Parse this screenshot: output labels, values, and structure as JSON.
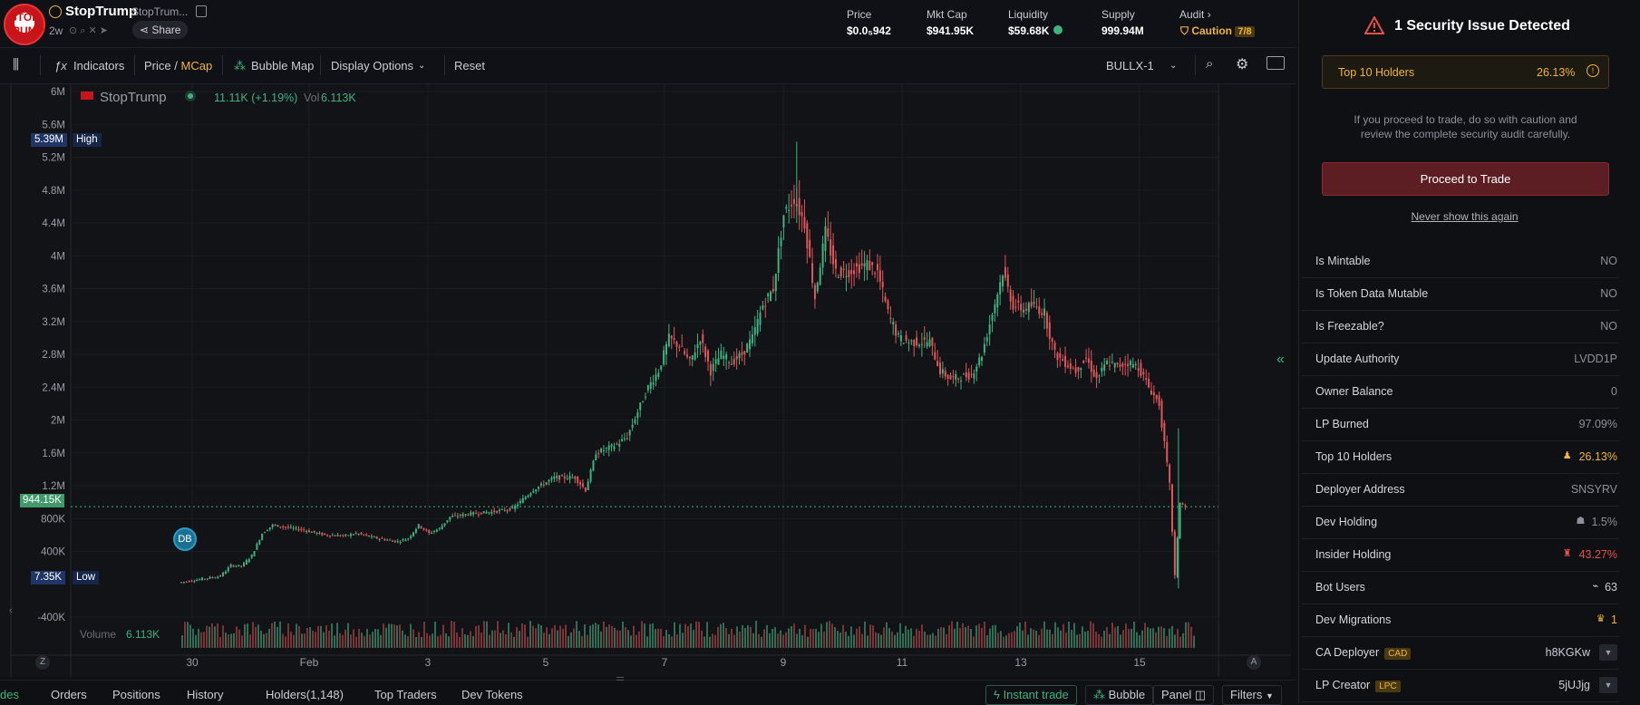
{
  "token": {
    "name": "StopTrump",
    "short": "StopTrum...",
    "age": "2w",
    "share": "Share",
    "logo_text": "STOP TRUMP"
  },
  "stats": [
    {
      "label": "Price",
      "value": "$0.0₅942"
    },
    {
      "label": "Mkt Cap",
      "value": "$941.95K"
    },
    {
      "label": "Liquidity",
      "value": "$59.68K"
    },
    {
      "label": "Supply",
      "value": "999.94M"
    }
  ],
  "audit": {
    "label": "Audit",
    "status": "Caution",
    "score": "7/8"
  },
  "toolbar": {
    "indicators": "Indicators",
    "price": "Price",
    "slash": "/",
    "mcap": "MCap",
    "bubble_map": "Bubble Map",
    "display_options": "Display Options",
    "reset": "Reset",
    "exchange": "BULLX-1"
  },
  "chart": {
    "legend_name": "StopTrump",
    "legend_change": "11.11K (+1.19%)",
    "legend_vol_label": "Vol",
    "legend_vol": "6.113K",
    "high_value": "5.39M",
    "high_label": "High",
    "low_value": "7.35K",
    "low_label": "Low",
    "current_value": "944.15K",
    "volume_label": "Volume",
    "volume_value": "6.113K",
    "marker": "DB",
    "zoom_left": "Z",
    "zoom_right": "A"
  },
  "chart_data": {
    "type": "candlestick",
    "y_ticks": [
      "6M",
      "5.6M",
      "5.2M",
      "4.8M",
      "4.4M",
      "4M",
      "3.6M",
      "3.2M",
      "2.8M",
      "2.4M",
      "2M",
      "1.6M",
      "1.2M",
      "800K",
      "400K",
      "-400K"
    ],
    "x_ticks": [
      "30",
      "Feb",
      "3",
      "5",
      "7",
      "9",
      "11",
      "13",
      "15"
    ],
    "ylim": [
      -400000,
      6000000
    ],
    "series": [
      {
        "x": 0,
        "y": 20000
      },
      {
        "x": 2,
        "y": 60000
      },
      {
        "x": 4,
        "y": 100000
      },
      {
        "x": 5,
        "y": 230000
      },
      {
        "x": 6,
        "y": 220000
      },
      {
        "x": 7,
        "y": 350000
      },
      {
        "x": 8,
        "y": 620000
      },
      {
        "x": 9,
        "y": 720000
      },
      {
        "x": 10,
        "y": 700000
      },
      {
        "x": 12,
        "y": 660000
      },
      {
        "x": 14,
        "y": 600000
      },
      {
        "x": 16,
        "y": 590000
      },
      {
        "x": 17,
        "y": 620000
      },
      {
        "x": 19,
        "y": 560000
      },
      {
        "x": 21,
        "y": 520000
      },
      {
        "x": 22,
        "y": 560000
      },
      {
        "x": 23,
        "y": 720000
      },
      {
        "x": 24,
        "y": 620000
      },
      {
        "x": 25,
        "y": 680000
      },
      {
        "x": 26,
        "y": 820000
      },
      {
        "x": 28,
        "y": 860000
      },
      {
        "x": 30,
        "y": 880000
      },
      {
        "x": 32,
        "y": 920000
      },
      {
        "x": 34,
        "y": 1150000
      },
      {
        "x": 36,
        "y": 1300000
      },
      {
        "x": 38,
        "y": 1300000
      },
      {
        "x": 39,
        "y": 1150000
      },
      {
        "x": 40,
        "y": 1600000
      },
      {
        "x": 42,
        "y": 1700000
      },
      {
        "x": 43,
        "y": 1800000
      },
      {
        "x": 44,
        "y": 2100000
      },
      {
        "x": 45,
        "y": 2400000
      },
      {
        "x": 46,
        "y": 2600000
      },
      {
        "x": 47,
        "y": 3000000
      },
      {
        "x": 48,
        "y": 2900000
      },
      {
        "x": 49,
        "y": 2700000
      },
      {
        "x": 50,
        "y": 3000000
      },
      {
        "x": 51,
        "y": 2600000
      },
      {
        "x": 52,
        "y": 2800000
      },
      {
        "x": 53,
        "y": 2700000
      },
      {
        "x": 54,
        "y": 2800000
      },
      {
        "x": 55,
        "y": 3000000
      },
      {
        "x": 56,
        "y": 3400000
      },
      {
        "x": 57,
        "y": 3600000
      },
      {
        "x": 58,
        "y": 4500000
      },
      {
        "x": 59,
        "y": 4700000
      },
      {
        "x": 60,
        "y": 4400000
      },
      {
        "x": 61,
        "y": 3500000
      },
      {
        "x": 62,
        "y": 4300000
      },
      {
        "x": 63,
        "y": 3800000
      },
      {
        "x": 64,
        "y": 3800000
      },
      {
        "x": 66,
        "y": 3900000
      },
      {
        "x": 67,
        "y": 3800000
      },
      {
        "x": 68,
        "y": 3300000
      },
      {
        "x": 69,
        "y": 3000000
      },
      {
        "x": 70,
        "y": 2950000
      },
      {
        "x": 72,
        "y": 2950000
      },
      {
        "x": 73,
        "y": 2600000
      },
      {
        "x": 74,
        "y": 2500000
      },
      {
        "x": 76,
        "y": 2550000
      },
      {
        "x": 77,
        "y": 2800000
      },
      {
        "x": 78,
        "y": 3300000
      },
      {
        "x": 79,
        "y": 3800000
      },
      {
        "x": 80,
        "y": 3400000
      },
      {
        "x": 81,
        "y": 3350000
      },
      {
        "x": 82,
        "y": 3400000
      },
      {
        "x": 83,
        "y": 3300000
      },
      {
        "x": 84,
        "y": 2800000
      },
      {
        "x": 85,
        "y": 2700000
      },
      {
        "x": 86,
        "y": 2600000
      },
      {
        "x": 87,
        "y": 2750000
      },
      {
        "x": 88,
        "y": 2500000
      },
      {
        "x": 89,
        "y": 2700000
      },
      {
        "x": 90,
        "y": 2650000
      },
      {
        "x": 91,
        "y": 2700000
      },
      {
        "x": 92,
        "y": 2650000
      },
      {
        "x": 93,
        "y": 2400000
      },
      {
        "x": 94,
        "y": 2200000
      },
      {
        "x": 95,
        "y": 1200000
      },
      {
        "x": 95.5,
        "y": 100000
      },
      {
        "x": 96,
        "y": 1000000
      },
      {
        "x": 96.5,
        "y": 944150
      }
    ]
  },
  "security": {
    "title": "1 Security Issue Detected",
    "top10_label": "Top 10 Holders",
    "top10_value": "26.13%",
    "warning": "If you proceed to trade, do so with caution and review the complete security audit carefully.",
    "proceed": "Proceed to Trade",
    "never_show": "Never show this again"
  },
  "audit_rows": [
    {
      "label": "Is Mintable",
      "value": "NO",
      "color": "#8c9099"
    },
    {
      "label": "Is Token Data Mutable",
      "value": "NO",
      "color": "#8c9099"
    },
    {
      "label": "Is Freezable?",
      "value": "NO",
      "color": "#8c9099"
    },
    {
      "label": "Update Authority",
      "value": "LVDD1P",
      "color": "#8c9099"
    },
    {
      "label": "Owner Balance",
      "value": "0",
      "color": "#8c9099"
    },
    {
      "label": "LP Burned",
      "value": "97.09%",
      "color": "#8c9099"
    },
    {
      "label": "Top 10 Holders",
      "value": "26.13%",
      "color": "#f0b43c",
      "icon": "person-icon"
    },
    {
      "label": "Deployer Address",
      "value": "SNSYRV",
      "color": "#8c9099"
    },
    {
      "label": "Dev Holding",
      "value": "1.5%",
      "color": "#8c9099",
      "icon": "chef-hat-icon"
    },
    {
      "label": "Insider Holding",
      "value": "43.27%",
      "color": "#e8504a",
      "icon": "insider-icon"
    },
    {
      "label": "Bot Users",
      "value": "63",
      "color": "#c9ccd3",
      "icon": "bot-icon"
    },
    {
      "label": "Dev Migrations",
      "value": "1",
      "color": "#f0b43c",
      "icon": "crown-icon"
    },
    {
      "label": "CA Deployer",
      "badge": "CAD",
      "value": "h8KGKw",
      "color": "#c9ccd3",
      "icon": "filter-icon"
    },
    {
      "label": "LP Creator",
      "badge": "LPC",
      "value": "5jUJjg",
      "color": "#c9ccd3",
      "icon": "filter-icon"
    }
  ],
  "bottom": {
    "tabs": [
      "des",
      "Orders",
      "Positions",
      "History",
      "Holders(1,148)",
      "Top Traders",
      "Dev Tokens"
    ],
    "instant_trade": "Instant trade",
    "bubble": "Bubble",
    "panel": "Panel",
    "filters": "Filters"
  }
}
